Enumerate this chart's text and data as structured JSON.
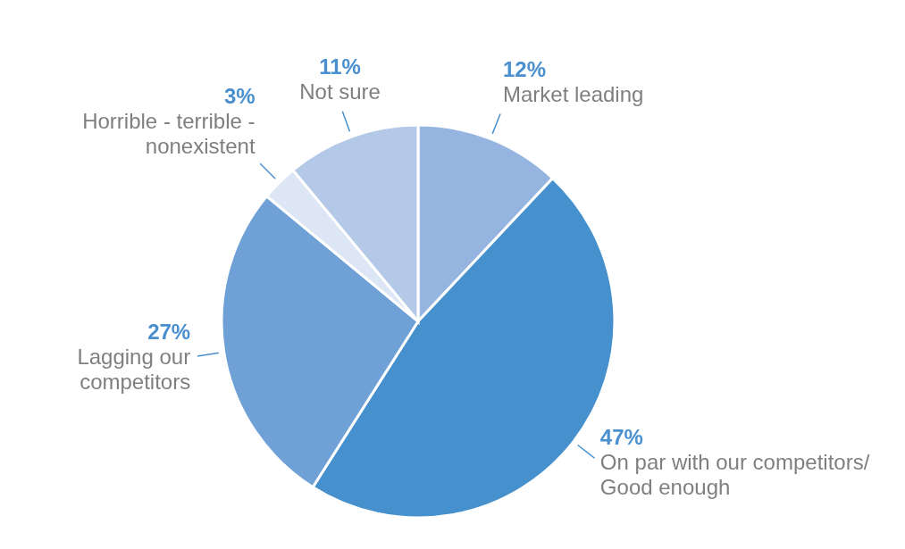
{
  "chart_data": {
    "type": "pie",
    "categories": [
      "Market leading",
      "On par with our competitors/ Good enough",
      "Lagging our competitors",
      "Horrible - terrible - nonexistent",
      "Not sure"
    ],
    "values": [
      12,
      47,
      27,
      3,
      11
    ],
    "value_labels": [
      "12%",
      "47%",
      "27%",
      "3%",
      "11%"
    ],
    "colors": [
      "#95b5e0",
      "#4590cd",
      "#6fa1d6",
      "#dde6f4",
      "#b4c8e8"
    ]
  }
}
